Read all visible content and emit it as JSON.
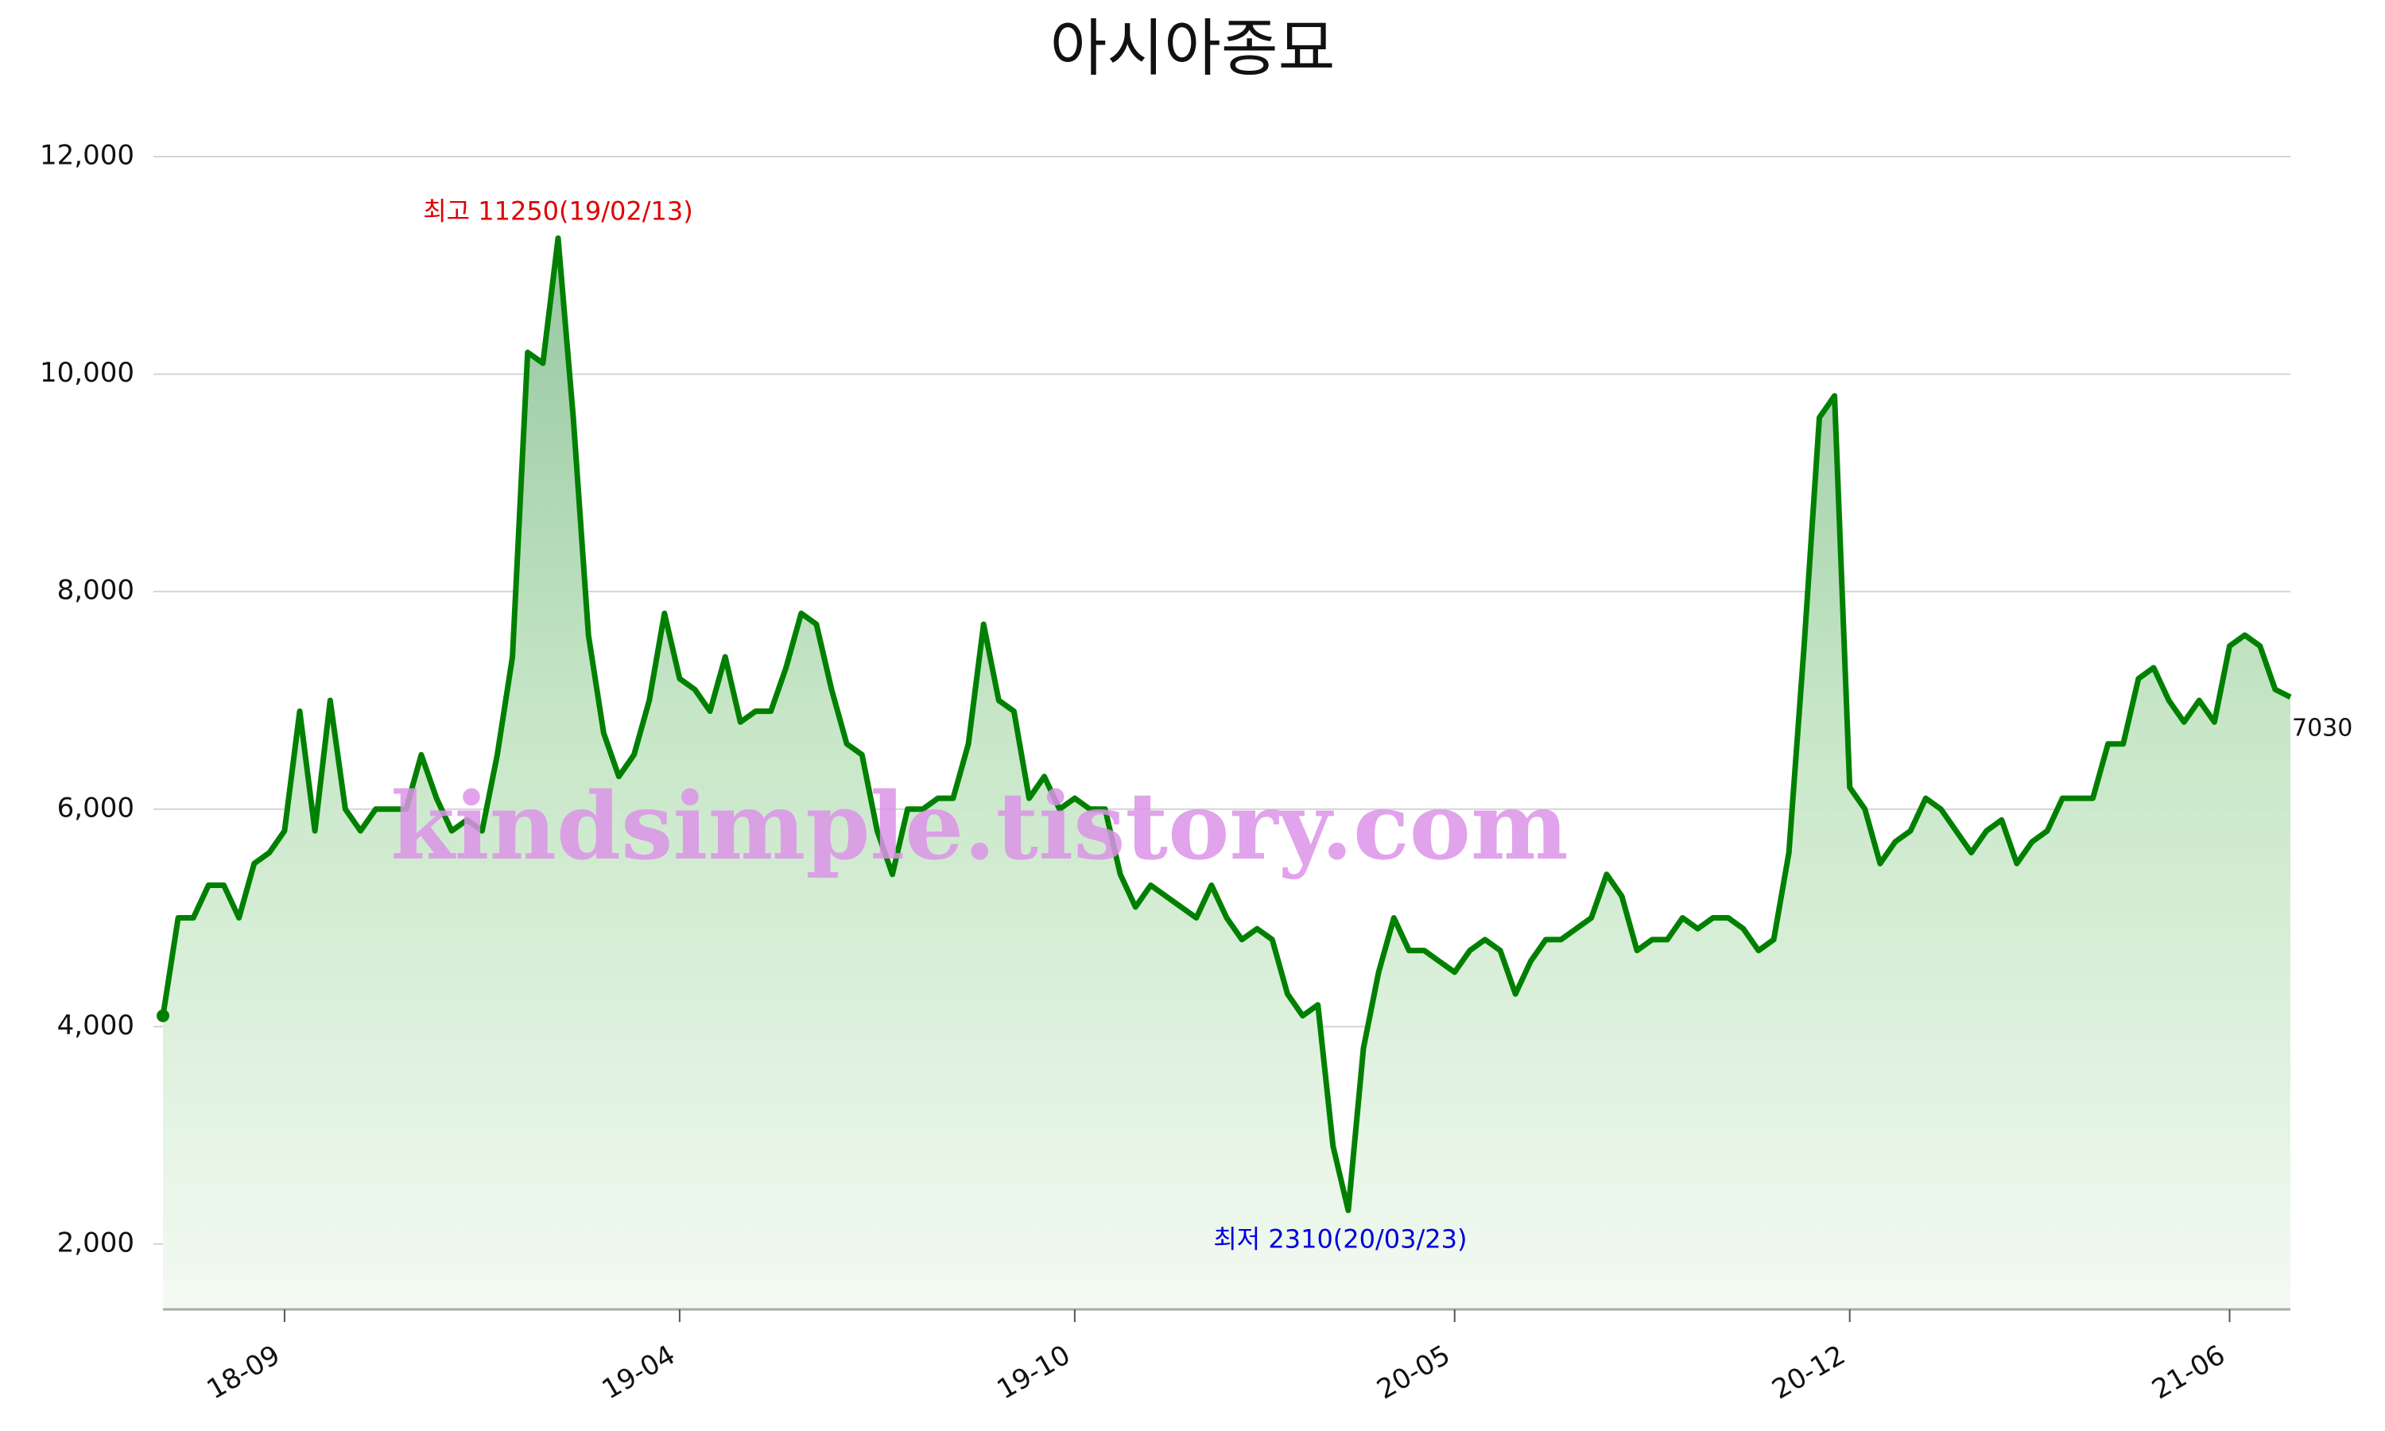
{
  "chart_data": {
    "type": "area",
    "title": "아시아종묘",
    "watermark": "kindsimple.tistory.com",
    "annotations": [
      "최고 11250(19/02/13)",
      "최저 2310(20/03/23)"
    ],
    "last_label": "7030",
    "color": "#008000",
    "grid": true,
    "ylim": [
      1400,
      12000
    ],
    "yticks": [
      {
        "value": 2000,
        "label": "2,000"
      },
      {
        "value": 4000,
        "label": "4,000"
      },
      {
        "value": 6000,
        "label": "6,000"
      },
      {
        "value": 8000,
        "label": "8,000"
      },
      {
        "value": 10000,
        "label": "10,000"
      },
      {
        "value": 12000,
        "label": "12,000"
      }
    ],
    "categories": [
      null,
      null,
      null,
      null,
      null,
      null,
      null,
      null,
      "18-09",
      null,
      null,
      null,
      null,
      null,
      null,
      null,
      null,
      null,
      null,
      null,
      null,
      null,
      null,
      null,
      null,
      null,
      null,
      null,
      null,
      null,
      null,
      null,
      null,
      null,
      "19-04",
      null,
      null,
      null,
      null,
      null,
      null,
      null,
      null,
      null,
      null,
      null,
      null,
      null,
      null,
      null,
      null,
      null,
      null,
      null,
      null,
      null,
      null,
      null,
      null,
      null,
      "19-10",
      null,
      null,
      null,
      null,
      null,
      null,
      null,
      null,
      null,
      null,
      null,
      null,
      null,
      null,
      null,
      null,
      null,
      null,
      null,
      null,
      null,
      null,
      null,
      null,
      "20-05",
      null,
      null,
      null,
      null,
      null,
      null,
      null,
      null,
      null,
      null,
      null,
      null,
      null,
      null,
      null,
      null,
      null,
      null,
      null,
      null,
      null,
      null,
      null,
      null,
      null,
      "20-12",
      null,
      null,
      null,
      null,
      null,
      null,
      null,
      null,
      null,
      null,
      null,
      null,
      null,
      null,
      null,
      null,
      null,
      null,
      null,
      null,
      null,
      null,
      null,
      null,
      "21-06",
      null,
      null,
      null,
      null
    ],
    "values": [
      4100,
      5000,
      5000,
      5300,
      5300,
      5000,
      5500,
      5600,
      5800,
      6900,
      5800,
      7000,
      6000,
      5800,
      6000,
      6000,
      6000,
      6500,
      6100,
      5800,
      5900,
      5800,
      6500,
      7400,
      10200,
      10100,
      11250,
      9600,
      7600,
      6700,
      6300,
      6500,
      7000,
      7800,
      7200,
      7100,
      6900,
      7400,
      6800,
      6900,
      6900,
      7300,
      7800,
      7700,
      7100,
      6600,
      6500,
      5800,
      5400,
      6000,
      6000,
      6100,
      6100,
      6600,
      7700,
      7000,
      6900,
      6100,
      6300,
      6000,
      6100,
      6000,
      6000,
      5400,
      5100,
      5300,
      5200,
      5100,
      5000,
      5300,
      5000,
      4800,
      4900,
      4800,
      4300,
      4100,
      4200,
      2900,
      2310,
      3800,
      4500,
      5000,
      4700,
      4700,
      4600,
      4500,
      4700,
      4800,
      4700,
      4300,
      4600,
      4800,
      4800,
      4900,
      5000,
      5400,
      5200,
      4700,
      4800,
      4800,
      5000,
      4900,
      5000,
      5000,
      4900,
      4700,
      4800,
      5600,
      7500,
      9600,
      9800,
      6200,
      6000,
      5500,
      5700,
      5800,
      6100,
      6000,
      5800,
      5600,
      5800,
      5900,
      5500,
      5700,
      5800,
      6100,
      6100,
      6100,
      6600,
      6600,
      7200,
      7300,
      7000,
      6800,
      7000,
      6800,
      7500,
      7600,
      7500,
      7100,
      7030
    ]
  }
}
